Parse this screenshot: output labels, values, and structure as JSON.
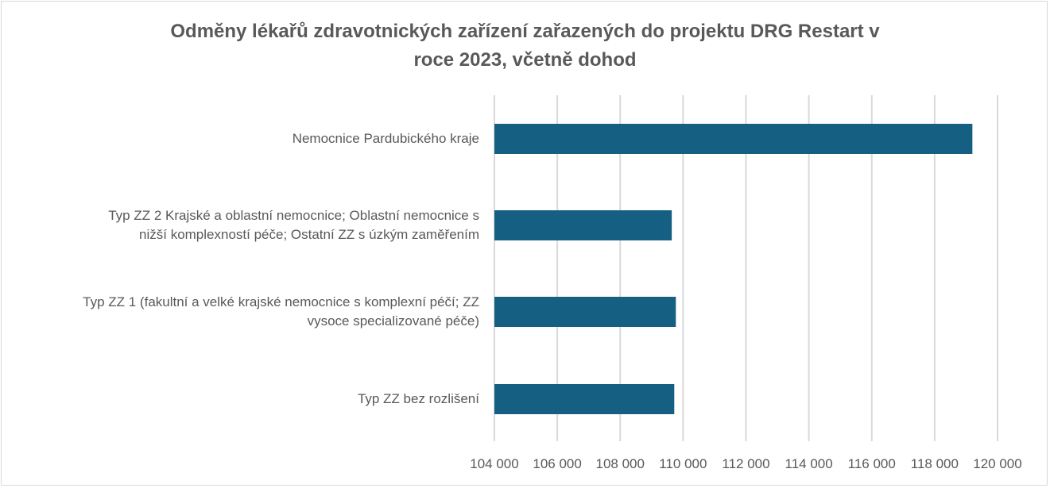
{
  "chart_data": {
    "type": "bar",
    "orientation": "horizontal",
    "title": "Odměny lékařů zdravotnických zařízení zařazených do projektu DRG Restart v roce 2023, včetně dohod",
    "title_lines": [
      "Odměny lékařů zdravotnických zařízení zařazených do projektu DRG Restart v",
      "roce 2023, včetně dohod"
    ],
    "categories": [
      "Nemocnice Pardubického kraje",
      "Typ ZZ 2 Krajské a oblastní nemocnice; Oblastní nemocnice s nižší komplexností péče; Ostatní ZZ s úzkým zaměřením",
      "Typ ZZ 1 (fakultní a velké krajské nemocnice s komplexní péčí; ZZ vysoce specializované péče)",
      "Typ ZZ bez rozlišení"
    ],
    "category_lines": [
      [
        "Nemocnice Pardubického kraje"
      ],
      [
        "Typ ZZ 2 Krajské a oblastní nemocnice; Oblastní nemocnice s",
        "nižší komplexností péče; Ostatní ZZ s úzkým zaměřením"
      ],
      [
        "Typ ZZ 1 (fakultní a velké krajské nemocnice s komplexní péčí; ZZ",
        "vysoce specializované péče)"
      ],
      [
        "Typ ZZ bez rozlišení"
      ]
    ],
    "values": [
      119200,
      109640,
      109770,
      109720
    ],
    "xlim": [
      104000,
      120000
    ],
    "xticks": [
      "104 000",
      "106 000",
      "108 000",
      "110 000",
      "112 000",
      "114 000",
      "116 000",
      "118 000",
      "120 000"
    ],
    "xtick_values": [
      104000,
      106000,
      108000,
      110000,
      112000,
      114000,
      116000,
      118000,
      120000
    ],
    "grid": true,
    "legend": "none",
    "bar_color": "#156082",
    "grid_color": "#d9d9d9"
  }
}
